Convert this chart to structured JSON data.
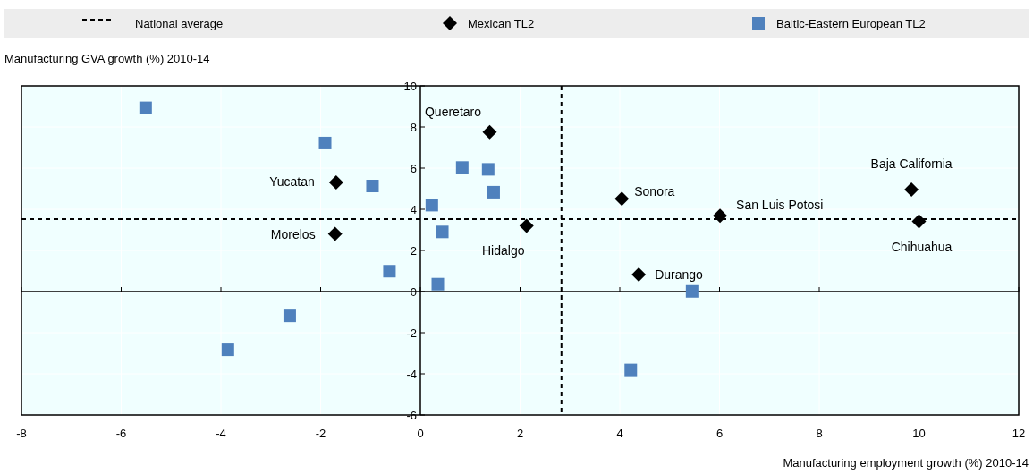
{
  "chart_data": {
    "type": "scatter",
    "xlabel": "Manufacturing employment  growth (%) 2010-14",
    "ylabel": "Manufacturing GVA  growth (%) 2010-14",
    "xlim": [
      -8,
      12
    ],
    "xticks": [
      -8,
      -6,
      -4,
      -2,
      0,
      2,
      4,
      6,
      8,
      10,
      12
    ],
    "ylim": [
      -6,
      10
    ],
    "yticks": [
      -6,
      -4,
      -2,
      0,
      2,
      4,
      6,
      8,
      10
    ],
    "grid": true,
    "legend": "top",
    "series": [
      {
        "name": "Mexican TL2",
        "color": "#000000",
        "marker": "diamond",
        "x": [
          1.39,
          -1.69,
          -1.71,
          2.13,
          4.04,
          6.01,
          9.85,
          10.0,
          4.38
        ],
        "values": [
          7.75,
          5.3,
          2.8,
          3.2,
          4.51,
          3.68,
          4.96,
          3.41,
          0.83
        ]
      },
      {
        "name": "Baltic-Eastern European TL2",
        "color": "#4f81bd",
        "marker": "square",
        "x": [
          -5.51,
          -1.91,
          -0.96,
          -0.62,
          0.23,
          0.84,
          1.36,
          1.47,
          0.44,
          0.35,
          5.45,
          -2.62,
          -3.86,
          4.22
        ],
        "values": [
          8.93,
          7.22,
          5.13,
          0.99,
          4.2,
          6.03,
          5.94,
          4.83,
          2.9,
          0.36,
          0.01,
          -1.18,
          -2.83,
          -3.81
        ]
      }
    ],
    "ref_lines": [
      {
        "axis": "x",
        "value": 2.83,
        "label": "National average",
        "color": "#000000",
        "line_style": "dashed"
      },
      {
        "axis": "y",
        "value": 3.52,
        "color": "#000000",
        "line_style": "dashed"
      }
    ],
    "annotations": [
      {
        "text": "Queretaro",
        "x": 1.39,
        "y": 7.75
      },
      {
        "text": "Yucatan",
        "x": -1.69,
        "y": 5.3
      },
      {
        "text": "Morelos",
        "x": -1.71,
        "y": 2.8
      },
      {
        "text": "Hidalgo",
        "x": 2.13,
        "y": 3.2
      },
      {
        "text": "Sonora",
        "x": 4.04,
        "y": 4.51
      },
      {
        "text": "San Luis Potosi",
        "x": 6.01,
        "y": 3.68
      },
      {
        "text": "Baja California",
        "x": 9.85,
        "y": 4.96
      },
      {
        "text": "Chihuahua",
        "x": 10.0,
        "y": 3.41
      },
      {
        "text": "Durango",
        "x": 4.38,
        "y": 0.83
      }
    ]
  }
}
